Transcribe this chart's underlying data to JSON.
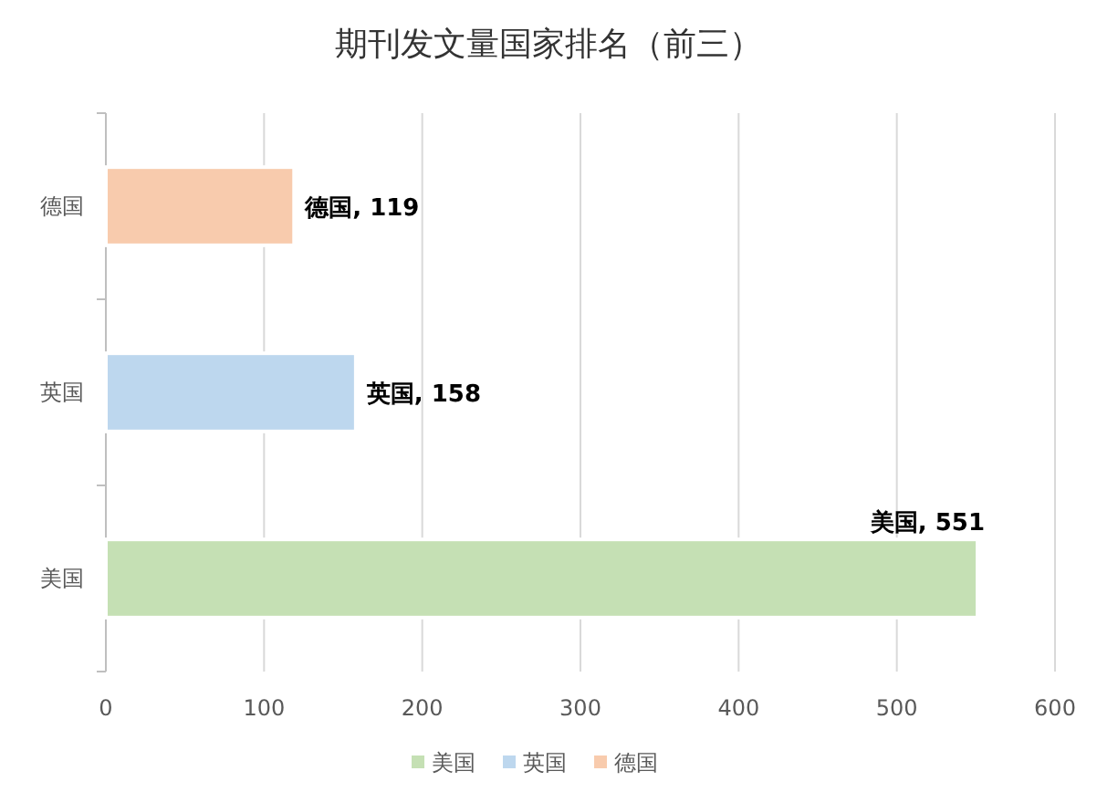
{
  "chart_data": {
    "type": "bar",
    "orientation": "horizontal",
    "title": "期刊发文量国家排名（前三）",
    "categories": [
      "德国",
      "英国",
      "美国"
    ],
    "series": [
      {
        "name": "美国",
        "color": "#c5e0b4",
        "values": [
          null,
          null,
          551
        ],
        "value_labels": [
          null,
          null,
          "美国, 551"
        ]
      },
      {
        "name": "英国",
        "color": "#bdd7ee",
        "values": [
          null,
          158,
          null
        ],
        "value_labels": [
          null,
          "英国, 158",
          null
        ]
      },
      {
        "name": "德国",
        "color": "#f8cbad",
        "values": [
          119,
          null,
          null
        ],
        "value_labels": [
          "德国, 119",
          null,
          null
        ]
      }
    ],
    "xlim": [
      0,
      600
    ],
    "xticks": [
      0,
      100,
      200,
      300,
      400,
      500,
      600
    ],
    "grid": "x",
    "legend": "bottom"
  }
}
